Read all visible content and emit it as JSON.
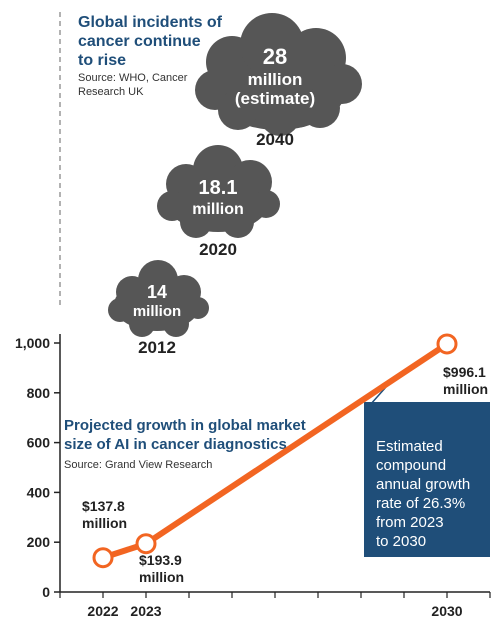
{
  "incidents": {
    "title_lines": [
      "Global incidents of",
      "cancer continue",
      "to rise"
    ],
    "source_lines": [
      "Source: WHO, Cancer",
      "Research UK"
    ],
    "clouds": [
      {
        "year": "2040",
        "lines": [
          "28",
          "million",
          "(estimate)"
        ],
        "value": 28
      },
      {
        "year": "2020",
        "lines": [
          "18.1",
          "million"
        ],
        "value": 18.1
      },
      {
        "year": "2012",
        "lines": [
          "14",
          "million"
        ],
        "value": 14
      }
    ],
    "cloud_color": "#565656"
  },
  "chart_data": {
    "type": "line",
    "title_lines": [
      "Projected growth in global market",
      "size of AI in cancer diagnostics"
    ],
    "source": "Source: Grand View Research",
    "x": [
      2022,
      2023,
      2030
    ],
    "values": [
      137.8,
      193.9,
      996.1
    ],
    "point_labels": [
      [
        "$137.8",
        "million"
      ],
      [
        "$193.9",
        "million"
      ],
      [
        "$996.1",
        "million"
      ]
    ],
    "xlim": [
      2021,
      2031
    ],
    "ylim": [
      0,
      1000
    ],
    "yticks": [
      0,
      200,
      400,
      600,
      800,
      1000
    ],
    "ytick_labels": [
      "0",
      "200",
      "400",
      "600",
      "800",
      "1,000"
    ],
    "xtick_labels": [
      "2022",
      "2023",
      "2030"
    ],
    "annotation_lines": [
      "Estimated",
      "compound",
      "annual growth",
      "rate of 26.3%",
      "from 2023",
      "to 2030"
    ],
    "line_color": "#f26522",
    "annotation_color": "#1f4e79"
  }
}
